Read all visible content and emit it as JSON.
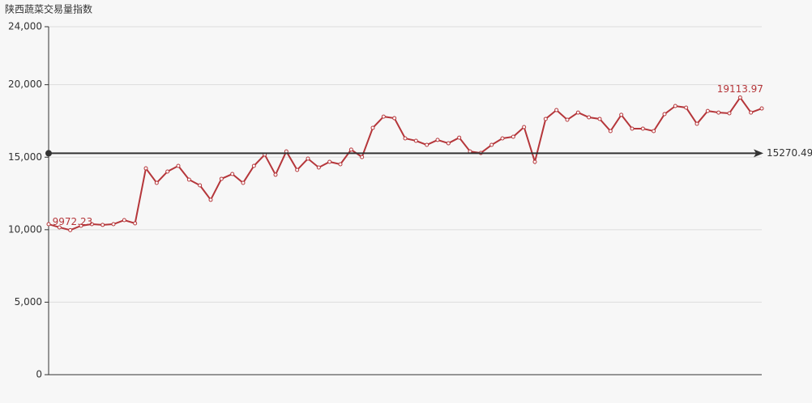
{
  "chart_data": {
    "type": "line",
    "title": "陕西蔬菜交易量指数",
    "categories": [
      null,
      null,
      null,
      null,
      null,
      null,
      null,
      null,
      null,
      null,
      null,
      null,
      null,
      null,
      null,
      null,
      null,
      null,
      null,
      null,
      null,
      null,
      null,
      null,
      null,
      null,
      null,
      null,
      null,
      null,
      null,
      null,
      null,
      null,
      null,
      null,
      null,
      null,
      null,
      null,
      null,
      null,
      null,
      null,
      null,
      null,
      null,
      null,
      null,
      null,
      null,
      null,
      null,
      null,
      null,
      null,
      null,
      null,
      null,
      null,
      null,
      null,
      null,
      null,
      null,
      null,
      null
    ],
    "series": [
      {
        "color": "#b5363a",
        "values": [
          10380,
          10160,
          9972.23,
          10270,
          10380,
          10330,
          10380,
          10660,
          10440,
          14230,
          13230,
          14010,
          14400,
          13450,
          13060,
          12060,
          13510,
          13840,
          13230,
          14400,
          15180,
          13790,
          15400,
          14120,
          14900,
          14290,
          14680,
          14510,
          15520,
          15010,
          17020,
          17800,
          17690,
          16300,
          16130,
          15850,
          16190,
          15960,
          16350,
          15400,
          15290,
          15850,
          16300,
          16410,
          17080,
          14680,
          17640,
          18250,
          17580,
          18080,
          17750,
          17640,
          16800,
          17920,
          16970,
          16970,
          16800,
          17970,
          18530,
          18420,
          17300,
          18190,
          18080,
          18030,
          19113.97,
          18080,
          18360
        ]
      }
    ],
    "average": 15270.49,
    "average_color": "#333333",
    "ylim": [
      0,
      24000
    ],
    "yticks": [
      0,
      {
        "value": 5000,
        "label": "5,000"
      },
      {
        "value": 10000,
        "label": "10,000"
      },
      {
        "value": 15000,
        "label": "15,000"
      },
      {
        "value": 20000,
        "label": "20,000"
      },
      {
        "value": 24000,
        "label": "24,000"
      }
    ],
    "grid": true
  }
}
